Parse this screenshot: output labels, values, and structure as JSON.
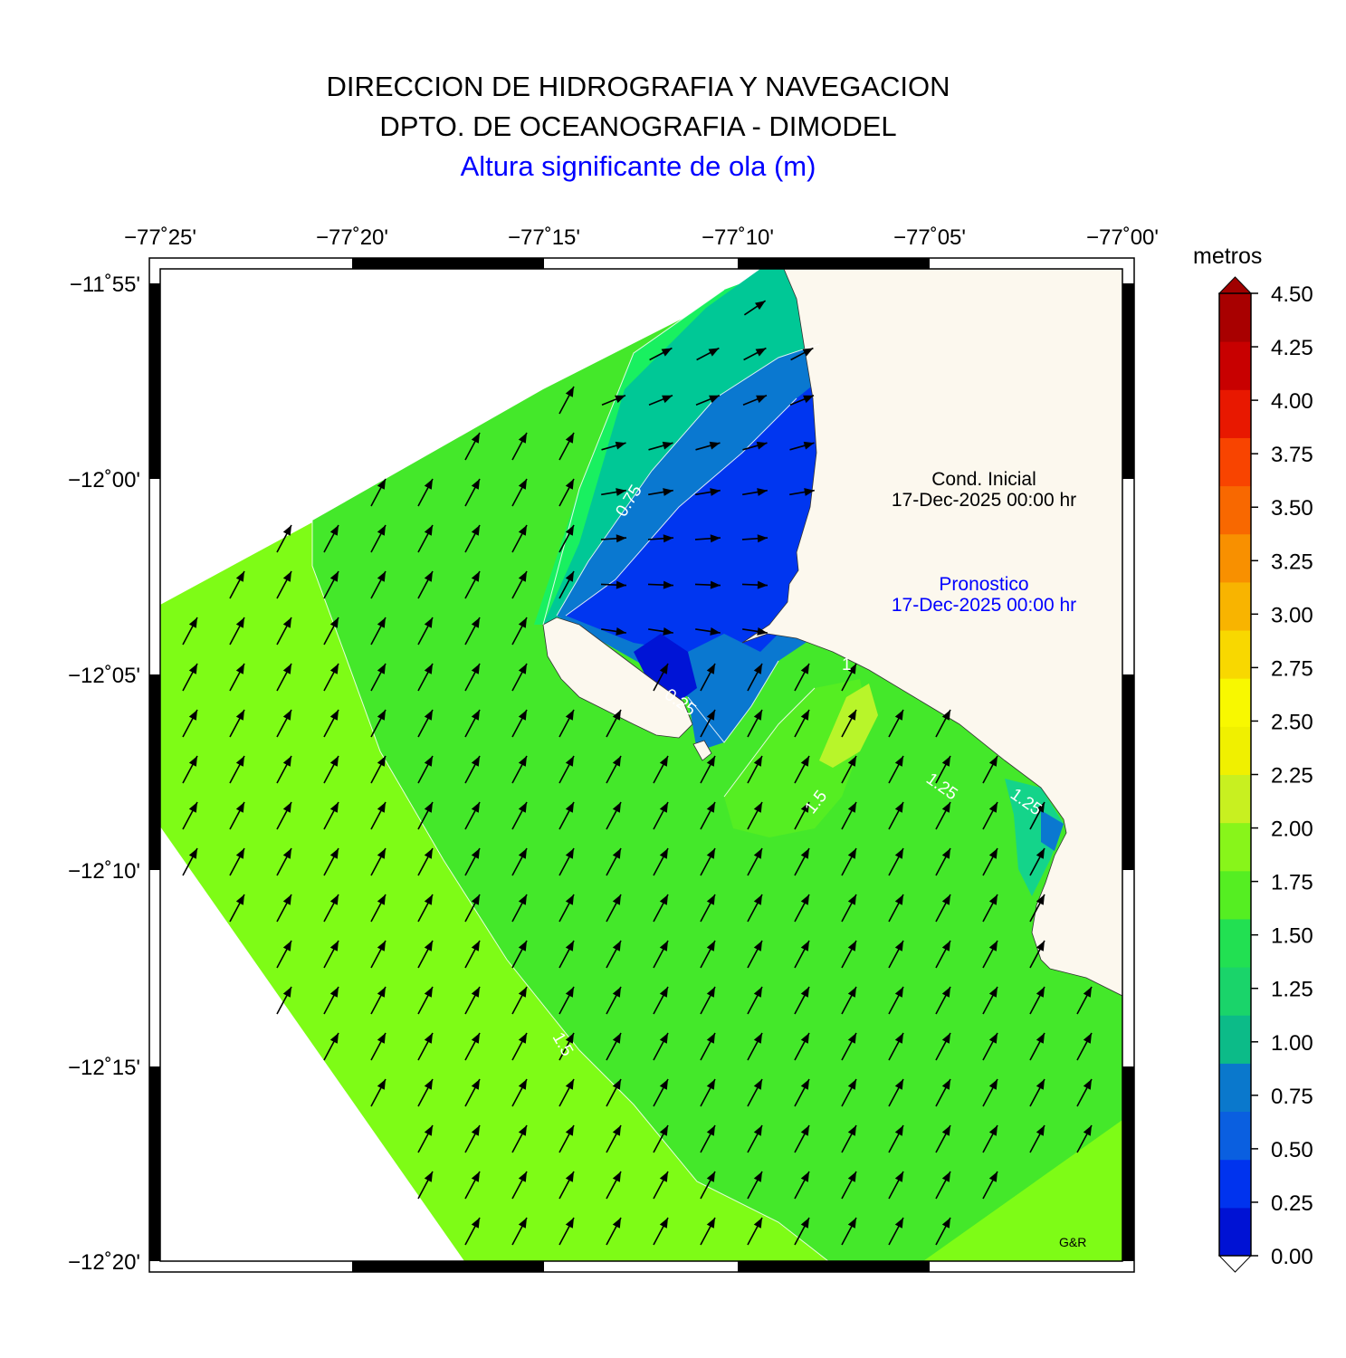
{
  "header": {
    "line1": "DIRECCION DE HIDROGRAFIA Y NAVEGACION",
    "line2": "DPTO. DE OCEANOGRAFIA - DIMODEL",
    "line3": "Altura significante de ola (m)"
  },
  "map": {
    "lon_ticks": [
      "−77˚25'",
      "−77˚20'",
      "−77˚15'",
      "−77˚10'",
      "−77˚05'",
      "−77˚00'"
    ],
    "lat_ticks": [
      "−11˚55'",
      "−12˚00'",
      "−12˚05'",
      "−12˚10'",
      "−12˚15'",
      "−12˚20'"
    ],
    "contour_labels": [
      "0.75",
      "0.25",
      "1.5",
      "1.5",
      "1.25",
      "1.25",
      "1"
    ],
    "land_color": "#fcf8ee",
    "arrow_color": "#000000"
  },
  "annotations": {
    "cond_title": "Cond. Inicial",
    "cond_date": "17-Dec-2025 00:00 hr",
    "pron_title": "Pronostico",
    "pron_date": "17-Dec-2025 00:00 hr",
    "credit": "G&R"
  },
  "colorbar": {
    "unit": "metros",
    "labels": [
      "4.50",
      "4.25",
      "4.00",
      "3.75",
      "3.50",
      "3.25",
      "3.00",
      "2.75",
      "2.50",
      "2.25",
      "2.00",
      "1.75",
      "1.50",
      "1.25",
      "1.00",
      "0.75",
      "0.50",
      "0.25",
      "0.00"
    ],
    "colors": [
      "#0012d4",
      "#0033ee",
      "#0a5fe0",
      "#0a78cc",
      "#0cbb88",
      "#1ad46a",
      "#22e052",
      "#55ee22",
      "#88f51a",
      "#c8f020",
      "#f0f000",
      "#f8f800",
      "#f8d800",
      "#f8b400",
      "#f89000",
      "#f86800",
      "#f84400",
      "#e81800",
      "#c80000",
      "#a80000"
    ]
  }
}
